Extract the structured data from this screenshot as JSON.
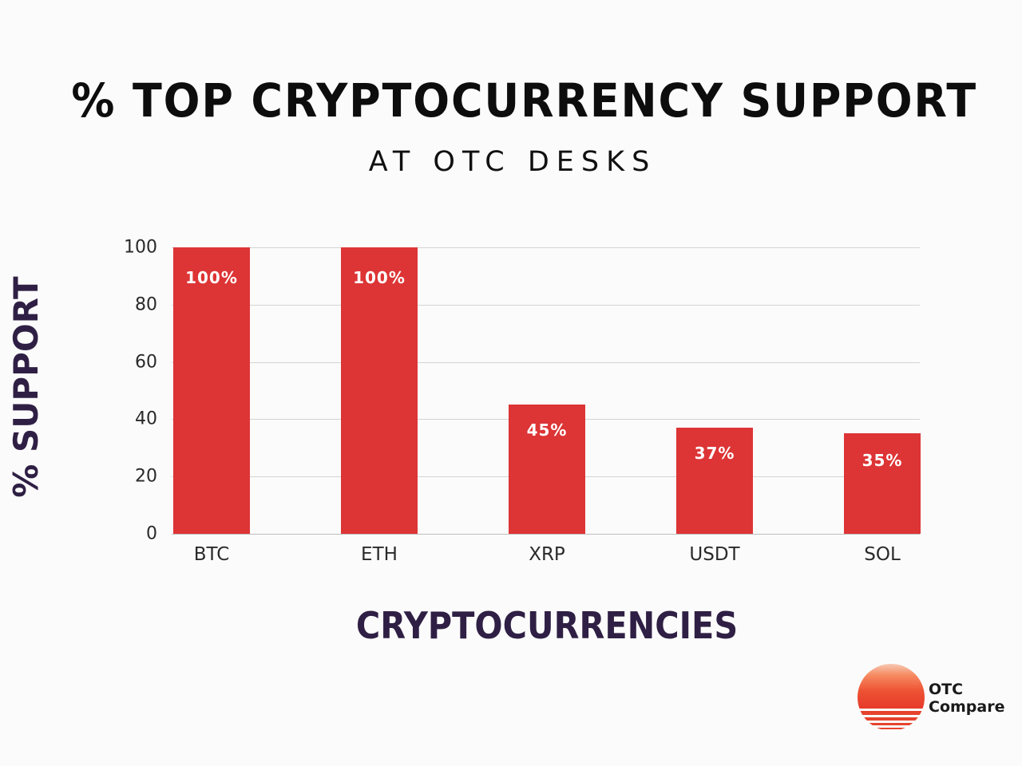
{
  "chart_data": {
    "type": "bar",
    "title": "% TOP CRYPTOCURRENCY SUPPORT",
    "subtitle": "AT OTC DESKS",
    "xlabel": "CRYPTOCURRENCIES",
    "ylabel": "% SUPPORT",
    "categories": [
      "BTC",
      "ETH",
      "XRP",
      "USDT",
      "SOL"
    ],
    "values": [
      100,
      100,
      45,
      37,
      35
    ],
    "data_labels": [
      "100%",
      "100%",
      "45%",
      "37%",
      "35%"
    ],
    "ylim": [
      0,
      100
    ],
    "yticks": [
      "0",
      "20",
      "40",
      "60",
      "80",
      "100"
    ],
    "grid": true,
    "legend": null,
    "bar_color": "#dd3435"
  },
  "brand": {
    "line1": "OTC",
    "line2": "Compare"
  }
}
